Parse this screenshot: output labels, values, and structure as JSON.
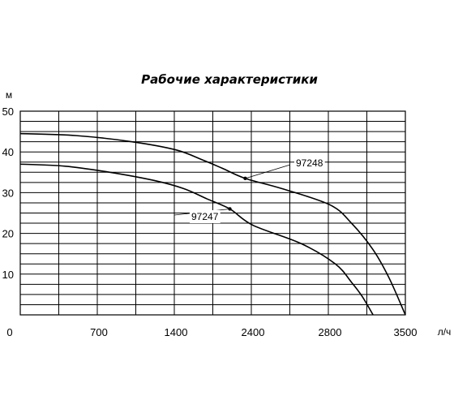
{
  "chart_data": {
    "type": "line",
    "title": "Рабочие характеристики",
    "ylabel": "м",
    "xlabel": "л/ч",
    "ylim": [
      0,
      50
    ],
    "y_ticks": [
      "10",
      "20",
      "30",
      "40",
      "50"
    ],
    "x_tick_labels": [
      "0",
      "700",
      "1400",
      "2400",
      "2800",
      "3500"
    ],
    "grid": true,
    "series": [
      {
        "name": "97248",
        "x_position_note": "values in labeled-tick units",
        "x": [
          0,
          500,
          1000,
          1400,
          1750,
          2000,
          2300,
          2550,
          2800,
          3000,
          3200,
          3350,
          3500
        ],
        "y": [
          44.5,
          44,
          42.5,
          40.5,
          38,
          36,
          33.5,
          31,
          27,
          22.5,
          16,
          9,
          0
        ],
        "marker_index": 6
      },
      {
        "name": "97247",
        "x": [
          0,
          400,
          800,
          1200,
          1500,
          1800,
          2100,
          2400,
          2650,
          2850,
          3000,
          3100,
          3200
        ],
        "y": [
          37,
          36.5,
          35,
          33,
          31,
          28.5,
          26,
          22,
          17.5,
          12.5,
          8,
          4.5,
          0
        ],
        "marker_index": 6
      }
    ]
  }
}
